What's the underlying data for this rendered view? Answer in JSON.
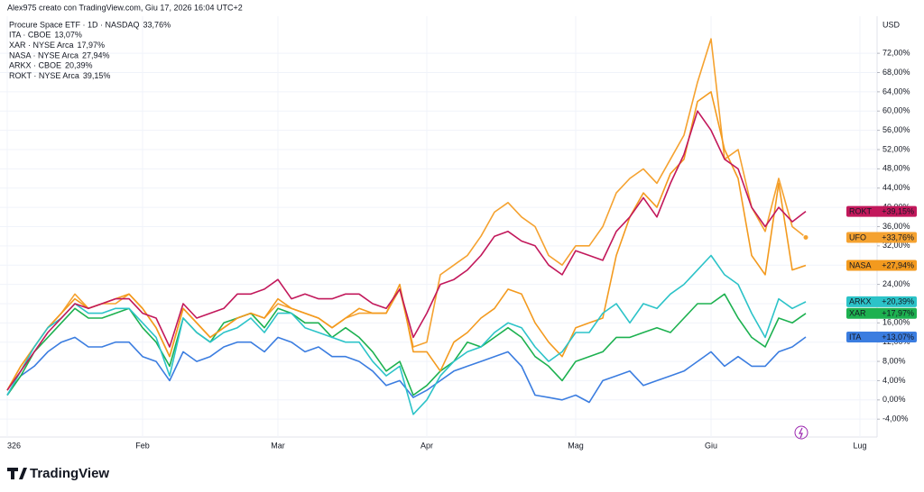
{
  "chart_data": {
    "type": "line",
    "title": "Alex975 creato con TradingView.com, Giu 17, 2026 16:04 UTC+2",
    "currency": "USD",
    "brand": "TradingView",
    "categories": [
      "326",
      null,
      null,
      null,
      null,
      null,
      null,
      null,
      null,
      null,
      "Feb",
      null,
      null,
      null,
      null,
      null,
      null,
      null,
      null,
      null,
      "Mar",
      null,
      null,
      null,
      null,
      null,
      null,
      null,
      null,
      null,
      null,
      "Apr",
      null,
      null,
      null,
      null,
      null,
      null,
      null,
      null,
      null,
      null,
      "Mag",
      null,
      null,
      null,
      null,
      null,
      null,
      null,
      null,
      null,
      "Giu",
      null,
      null,
      null,
      null,
      null,
      null,
      null,
      null,
      null,
      null,
      "Lug",
      null
    ],
    "ylim": [
      -6.4,
      79.7
    ],
    "yticks": [
      {
        "value": -4,
        "label": "-4,00%"
      },
      {
        "value": 0,
        "label": "0,00%"
      },
      {
        "value": 4,
        "label": "4,00%"
      },
      {
        "value": 8,
        "label": "8,00%"
      },
      {
        "value": 12,
        "label": "12,00%"
      },
      {
        "value": 16,
        "label": "16,00%"
      },
      {
        "value": 20,
        "label": "20,00%"
      },
      {
        "value": 24,
        "label": "24,00%"
      },
      {
        "value": 28,
        "label": "28,00%"
      },
      {
        "value": 32,
        "label": "32,00%"
      },
      {
        "value": 36,
        "label": "36,00%"
      },
      {
        "value": 40,
        "label": "40,00%"
      },
      {
        "value": 44,
        "label": "44,00%"
      },
      {
        "value": 48,
        "label": "48,00%"
      },
      {
        "value": 52,
        "label": "52,00%"
      },
      {
        "value": 56,
        "label": "56,00%"
      },
      {
        "value": 60,
        "label": "60,00%"
      },
      {
        "value": 64,
        "label": "64,00%"
      },
      {
        "value": 68,
        "label": "68,00%"
      },
      {
        "value": 72,
        "label": "72,00%"
      }
    ],
    "grid": true,
    "series": [
      {
        "name": "Procure Space ETF · 1D · NASDAQ",
        "last_label": "33,76%",
        "tag": "UFO",
        "tag_value": "+33,76%",
        "color": "#f5a230",
        "tag_text_color": "#131722",
        "values": [
          2,
          7,
          11,
          15,
          18,
          22,
          19,
          20,
          20,
          22,
          19,
          15,
          9,
          19,
          16,
          13,
          15,
          17,
          18,
          17,
          20,
          19,
          18,
          17,
          15,
          17,
          18,
          18,
          18,
          23,
          11,
          12,
          26,
          28,
          30,
          34,
          39,
          41,
          38,
          36,
          30,
          28,
          32,
          32,
          36,
          43,
          46,
          48,
          45,
          50,
          55,
          66,
          75,
          50,
          52,
          40,
          35,
          46,
          36,
          33.76,
          null,
          null,
          null,
          null,
          null
        ]
      },
      {
        "name": "ITA · CBOE",
        "last_label": "13,07%",
        "tag": "ITA",
        "tag_value": "+13,07%",
        "color": "#3b7de0",
        "tag_text_color": "#ffffff",
        "values": [
          1,
          5,
          7,
          10,
          12,
          13,
          11,
          11,
          12,
          12,
          9,
          8,
          4,
          10,
          8,
          9,
          11,
          12,
          12,
          10,
          13,
          12,
          10,
          11,
          9,
          9,
          8,
          6,
          3,
          4,
          0.5,
          2,
          4,
          6,
          7,
          8,
          9,
          10,
          7,
          1,
          0.5,
          0,
          1,
          -0.5,
          4,
          5,
          6,
          3,
          4,
          5,
          6,
          8,
          10,
          7,
          9,
          7,
          7,
          10,
          11,
          13.07,
          null,
          null,
          null,
          null,
          null
        ]
      },
      {
        "name": "XAR · NYSE Arca",
        "last_label": "17,97%",
        "tag": "XAR",
        "tag_value": "+17,97%",
        "color": "#1db150",
        "tag_text_color": "#ffffff",
        "values": [
          1,
          5,
          10,
          13,
          16,
          19,
          17,
          17,
          18,
          19,
          15,
          12,
          7,
          17,
          14,
          12,
          16,
          17,
          18,
          15,
          19,
          18,
          16,
          16,
          13,
          15,
          13,
          10,
          6,
          8,
          1,
          3,
          6,
          8,
          12,
          11,
          13,
          15,
          13,
          9,
          7,
          4,
          8,
          9,
          10,
          13,
          13,
          14,
          15,
          14,
          17,
          20,
          20,
          22,
          17,
          13,
          11,
          17,
          16,
          17.97,
          null,
          null,
          null,
          null,
          null
        ]
      },
      {
        "name": "NASA · NYSE Arca",
        "last_label": "27,94%",
        "tag": "NASA",
        "tag_value": "+27,94%",
        "color": "#f39a1e",
        "tag_text_color": "#131722",
        "values": [
          2,
          7,
          11,
          15,
          18,
          21,
          19,
          20,
          21,
          22,
          19,
          15,
          9,
          19,
          16,
          13,
          15,
          17,
          18,
          17,
          21,
          19,
          18,
          17,
          15,
          17,
          19,
          18,
          18,
          24,
          10,
          10,
          6,
          12,
          14,
          17,
          19,
          23,
          22,
          16,
          12,
          9,
          15,
          16,
          17,
          30,
          38,
          43,
          40,
          47,
          50,
          62,
          64,
          52,
          46,
          30,
          26,
          45,
          27,
          27.94,
          null,
          null,
          null,
          null,
          null
        ]
      },
      {
        "name": "ARKX · CBOE",
        "last_label": "20,39%",
        "tag": "ARKX",
        "tag_value": "+20,39%",
        "color": "#2cc3c8",
        "tag_text_color": "#131722",
        "values": [
          1,
          6,
          11,
          15,
          17,
          20,
          18,
          18,
          19,
          19,
          16,
          13,
          5,
          17,
          14,
          12,
          14,
          15,
          17,
          14,
          18,
          18,
          15,
          14,
          13,
          12,
          12,
          8,
          5,
          7,
          -3,
          0,
          5,
          8,
          10,
          11,
          14,
          16,
          15,
          11,
          8,
          10,
          14,
          14,
          18,
          20,
          16,
          20,
          19,
          22,
          24,
          27,
          30,
          26,
          24,
          18,
          13,
          21,
          19,
          20.39,
          null,
          null,
          null,
          null,
          null
        ]
      },
      {
        "name": "ROKT · NYSE Arca",
        "last_label": "39,15%",
        "tag": "ROKT",
        "tag_value": "+39,15%",
        "color": "#c2185b",
        "tag_text_color": "#ffffff",
        "values": [
          2,
          6,
          10,
          14,
          17,
          20,
          19,
          20,
          21,
          21,
          18,
          17,
          11,
          20,
          17,
          18,
          19,
          22,
          22,
          23,
          25,
          21,
          22,
          21,
          21,
          22,
          22,
          20,
          19,
          23,
          13,
          18,
          24,
          25,
          27,
          30,
          34,
          35,
          33,
          32,
          28,
          26,
          31,
          30,
          29,
          35,
          38,
          42,
          38,
          45,
          51,
          60,
          56,
          50,
          48,
          40,
          36,
          40,
          37,
          39.15,
          null,
          null,
          null,
          null,
          null
        ]
      }
    ]
  }
}
